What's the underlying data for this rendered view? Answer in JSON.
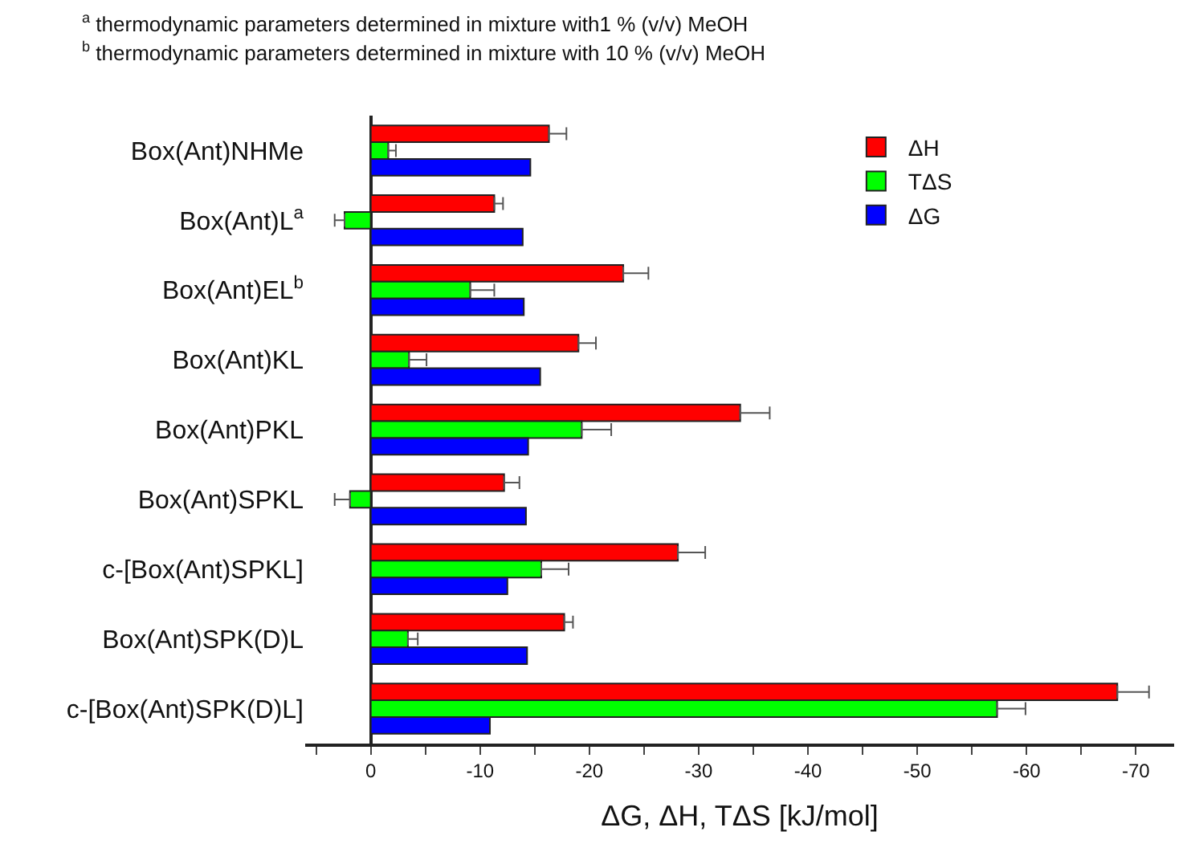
{
  "chart_data": {
    "type": "bar",
    "orientation": "horizontal",
    "xlabel": "ΔG, ΔH, TΔS [kJ/mol]",
    "annotations": [
      "$^{a}$ thermodynamic parameters determined in mixture with1 % (v/v) MeOH",
      "$^{b}$ thermodynamic parameters determined in mixture with 10 % (v/v) MeOH"
    ],
    "categories": [
      "Box(Ant)NHMe",
      "Box(Ant)L$^{a}$",
      "Box(Ant)EL$^{b}$",
      "Box(Ant)KL",
      "Box(Ant)PKL",
      "Box(Ant)SPKL",
      "c-[Box(Ant)SPKL]",
      "Box(Ant)SPK(D)L",
      "c-[Box(Ant)SPK(D)L]"
    ],
    "series": [
      {
        "name": "ΔH",
        "color": "#ff0000",
        "values": [
          -16.3,
          -11.3,
          -23.1,
          -19.0,
          -33.8,
          -12.2,
          -28.1,
          -17.7,
          -68.3
        ],
        "errors": [
          [
            -17.9,
            -16.3
          ],
          [
            -12.1,
            -11.3
          ],
          [
            -25.4,
            -23.1
          ],
          [
            -20.6,
            -19.0
          ],
          [
            -36.5,
            -33.8
          ],
          [
            -13.6,
            -12.2
          ],
          [
            -30.6,
            -28.1
          ],
          [
            -18.5,
            -17.7
          ],
          [
            -71.2,
            -68.3
          ]
        ]
      },
      {
        "name": "TΔS",
        "color": "#00ff00",
        "values": [
          -1.6,
          2.4,
          -9.1,
          -3.5,
          -19.3,
          1.9,
          -15.6,
          -3.4,
          -57.3
        ],
        "errors": [
          [
            -2.3,
            -1.6
          ],
          [
            2.4,
            3.3
          ],
          [
            -11.3,
            -9.1
          ],
          [
            -5.1,
            -3.5
          ],
          [
            -22.0,
            -19.3
          ],
          [
            1.9,
            3.3
          ],
          [
            -18.1,
            -15.6
          ],
          [
            -4.3,
            -3.4
          ],
          [
            -59.9,
            -57.3
          ]
        ]
      },
      {
        "name": "ΔG",
        "color": "#0000ff",
        "values": [
          -14.6,
          -13.9,
          -14.0,
          -15.5,
          -14.4,
          -14.2,
          -12.5,
          -14.3,
          -10.9
        ]
      }
    ],
    "xlim": [
      6,
      -73.5
    ],
    "xticks": [
      {
        "value": 5,
        "label": null
      },
      0,
      {
        "value": -5,
        "label": null
      },
      -10,
      {
        "value": -15,
        "label": null
      },
      -20,
      {
        "value": -25,
        "label": null
      },
      -30,
      {
        "value": -35,
        "label": null
      },
      -40,
      {
        "value": -45,
        "label": null
      },
      -50,
      {
        "value": -55,
        "label": null
      },
      -60,
      {
        "value": -65,
        "label": null
      },
      -70
    ],
    "legend": "top right"
  }
}
